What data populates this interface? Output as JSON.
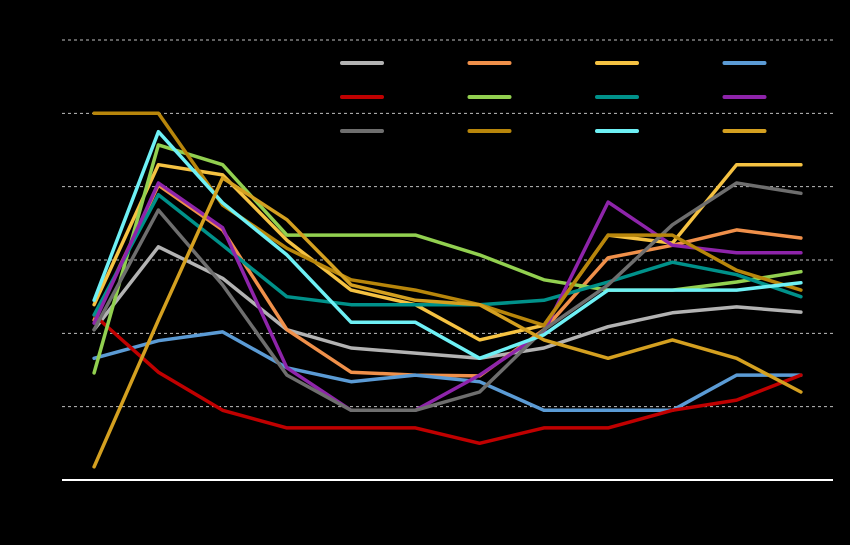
{
  "chart_data": {
    "type": "line",
    "categories": [
      null,
      null,
      null,
      null,
      null,
      null,
      null,
      null,
      null,
      null,
      null,
      null
    ],
    "ylim": [
      0,
      6
    ],
    "yticks": [
      0,
      1,
      2,
      3,
      4,
      5,
      6
    ],
    "grid": true,
    "series": [
      {
        "color": "#b3b3b3",
        "values": [
          2.05,
          3.18,
          2.75,
          2.05,
          1.8,
          1.73,
          1.66,
          1.8,
          2.09,
          2.28,
          2.36,
          2.29
        ]
      },
      {
        "color": "#f0904a",
        "values": [
          2.18,
          4.02,
          3.41,
          2.05,
          1.47,
          1.43,
          1.42,
          2.05,
          3.03,
          3.2,
          3.41,
          3.3
        ]
      },
      {
        "color": "#f5c242",
        "values": [
          2.39,
          4.3,
          4.16,
          3.27,
          2.59,
          2.39,
          1.91,
          2.11,
          3.34,
          3.23,
          4.3,
          4.3
        ]
      },
      {
        "color": "#5b9bd5",
        "values": [
          1.66,
          1.9,
          2.02,
          1.53,
          1.34,
          1.43,
          1.34,
          0.95,
          0.95,
          0.95,
          1.43,
          1.43
        ]
      },
      {
        "color": "#c00000",
        "values": [
          2.25,
          1.47,
          0.95,
          0.71,
          0.71,
          0.71,
          0.5,
          0.71,
          0.71,
          0.95,
          1.09,
          1.43
        ]
      },
      {
        "color": "#92d050",
        "values": [
          1.46,
          4.57,
          4.3,
          3.34,
          3.34,
          3.34,
          3.07,
          2.73,
          2.59,
          2.59,
          2.7,
          2.84
        ]
      },
      {
        "color": "#00918a",
        "values": [
          2.25,
          3.89,
          3.2,
          2.5,
          2.39,
          2.39,
          2.39,
          2.45,
          2.7,
          2.97,
          2.8,
          2.5
        ]
      },
      {
        "color": "#8e24aa",
        "values": [
          2.14,
          4.05,
          3.44,
          1.53,
          0.95,
          0.95,
          1.43,
          2.02,
          3.79,
          3.2,
          3.1,
          3.1
        ]
      },
      {
        "color": "#6e6e6e",
        "values": [
          2.05,
          3.68,
          2.66,
          1.43,
          0.95,
          0.95,
          1.2,
          2.05,
          2.66,
          3.48,
          4.05,
          3.91
        ]
      },
      {
        "color": "#b8860b",
        "values": [
          5.0,
          5.0,
          3.75,
          3.16,
          2.73,
          2.59,
          2.39,
          2.11,
          3.34,
          3.34,
          2.86,
          2.59
        ]
      },
      {
        "color": "#6ef0f5",
        "values": [
          2.45,
          4.75,
          3.78,
          3.07,
          2.15,
          2.15,
          1.66,
          1.98,
          2.59,
          2.59,
          2.59,
          2.69
        ]
      },
      {
        "color": "#d4a020",
        "values": [
          0.18,
          2.18,
          4.12,
          3.55,
          2.66,
          2.45,
          2.39,
          1.91,
          1.66,
          1.91,
          1.66,
          1.2
        ]
      }
    ]
  }
}
